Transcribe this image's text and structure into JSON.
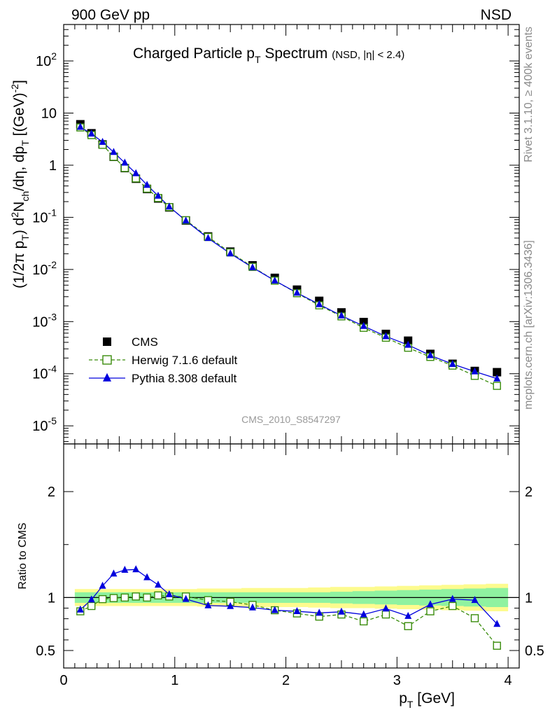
{
  "header": {
    "left": "900 GeV pp",
    "right": "NSD"
  },
  "side_labels": {
    "rivet": "Rivet 3.1.10, ≥ 400k events",
    "mcplots": "mcplots.cern.ch [arXiv:1306.3436]"
  },
  "chart_data": [
    {
      "type": "scatter",
      "title": "Charged Particle p_T Spectrum",
      "title_sub": "(NSD, |η| < 2.4)",
      "analysis": "CMS_2010_S8547297",
      "ylabel": "(1/2π p_T) d²N_ch/dη, dp_T [(GeV)⁻²]",
      "yscale": "log",
      "xlim": [
        0,
        4.1
      ],
      "ylim": [
        4.5e-06,
        500
      ],
      "ytick_labels": [
        "10^{-5}",
        "10^{-4}",
        "10^{-3}",
        "10^{-2}",
        "10^{-1}",
        "1",
        "10",
        "10^{2}"
      ],
      "legend_position": "lower-left",
      "x": [
        0.15,
        0.25,
        0.35,
        0.45,
        0.55,
        0.65,
        0.75,
        0.85,
        0.95,
        1.1,
        1.3,
        1.5,
        1.7,
        1.9,
        2.1,
        2.3,
        2.5,
        2.7,
        2.9,
        3.1,
        3.3,
        3.5,
        3.7,
        3.9
      ],
      "series": [
        {
          "name": "CMS",
          "color": "#000000",
          "marker": "filled-square",
          "values": [
            6.1,
            4.1,
            2.5,
            1.45,
            0.88,
            0.55,
            0.35,
            0.23,
            0.155,
            0.087,
            0.043,
            0.022,
            0.012,
            0.0069,
            0.0041,
            0.0025,
            0.0015,
            0.00098,
            0.00058,
            0.00043,
            0.00024,
            0.000155,
            0.000113,
            0.000107
          ]
        },
        {
          "name": "Herwig 7.1.6 default",
          "color": "#3a8c0c",
          "marker": "open-square",
          "line": "dashed",
          "values": [
            5.3,
            3.78,
            2.46,
            1.45,
            0.885,
            0.558,
            0.355,
            0.235,
            0.157,
            0.088,
            0.042,
            0.0212,
            0.0112,
            0.0061,
            0.0035,
            0.00205,
            0.00126,
            0.00076,
            0.00049,
            0.000315,
            0.00021,
            0.000143,
            9.1e-05,
            5.85e-05
          ]
        },
        {
          "name": "Pythia 8.308 default",
          "color": "#0000dd",
          "marker": "filled-triangle",
          "line": "solid",
          "values": [
            5.4,
            4.02,
            2.78,
            1.78,
            1.11,
            0.697,
            0.417,
            0.258,
            0.16,
            0.086,
            0.0398,
            0.0202,
            0.0109,
            0.0061,
            0.00356,
            0.00214,
            0.0013,
            0.00082,
            0.00052,
            0.000356,
            0.000225,
            0.000153,
            0.00011,
            8.05e-05
          ]
        }
      ]
    },
    {
      "type": "line",
      "ylabel": "Ratio to CMS",
      "xlabel": "p_T [GeV]",
      "xlim": [
        0,
        4.1
      ],
      "ylim": [
        0.335,
        2.45
      ],
      "xtick_labels": [
        "0",
        "1",
        "2",
        "3",
        "4"
      ],
      "ytick_labels": [
        "0.5",
        "1",
        "2"
      ],
      "x": [
        0.15,
        0.25,
        0.35,
        0.45,
        0.55,
        0.65,
        0.75,
        0.85,
        0.95,
        1.1,
        1.3,
        1.5,
        1.7,
        1.9,
        2.1,
        2.3,
        2.5,
        2.7,
        2.9,
        3.1,
        3.3,
        3.5,
        3.7,
        3.9
      ],
      "band_edges": [
        0.1,
        0.2,
        0.3,
        0.4,
        0.5,
        0.6,
        0.7,
        0.8,
        0.9,
        1.0,
        1.2,
        1.4,
        1.6,
        1.8,
        2.0,
        2.2,
        2.4,
        2.6,
        2.8,
        3.0,
        3.2,
        3.4,
        3.6,
        3.8,
        4.0
      ],
      "band_stat": [
        0.05,
        0.05,
        0.05,
        0.05,
        0.05,
        0.05,
        0.05,
        0.05,
        0.05,
        0.05,
        0.05,
        0.05,
        0.05,
        0.05,
        0.05,
        0.05,
        0.055,
        0.06,
        0.065,
        0.07,
        0.075,
        0.08,
        0.085,
        0.09
      ],
      "band_total": [
        0.08,
        0.08,
        0.08,
        0.08,
        0.08,
        0.08,
        0.08,
        0.08,
        0.08,
        0.08,
        0.085,
        0.085,
        0.09,
        0.09,
        0.09,
        0.095,
        0.1,
        0.1,
        0.105,
        0.11,
        0.115,
        0.12,
        0.125,
        0.13
      ],
      "series": [
        {
          "name": "Herwig 7.1.6 default",
          "color": "#3a8c0c",
          "values": [
            0.87,
            0.92,
            0.985,
            0.995,
            1.0,
            1.01,
            1.0,
            1.02,
            1.01,
            1.01,
            0.975,
            0.96,
            0.93,
            0.88,
            0.85,
            0.82,
            0.84,
            0.775,
            0.84,
            0.73,
            0.87,
            0.92,
            0.805,
            0.545
          ]
        },
        {
          "name": "Pythia 8.308 default",
          "color": "#0000dd",
          "values": [
            0.885,
            0.98,
            1.11,
            1.225,
            1.26,
            1.265,
            1.19,
            1.12,
            1.03,
            0.985,
            0.925,
            0.918,
            0.905,
            0.88,
            0.87,
            0.855,
            0.865,
            0.84,
            0.895,
            0.825,
            0.935,
            0.985,
            0.975,
            0.75
          ]
        }
      ]
    }
  ]
}
